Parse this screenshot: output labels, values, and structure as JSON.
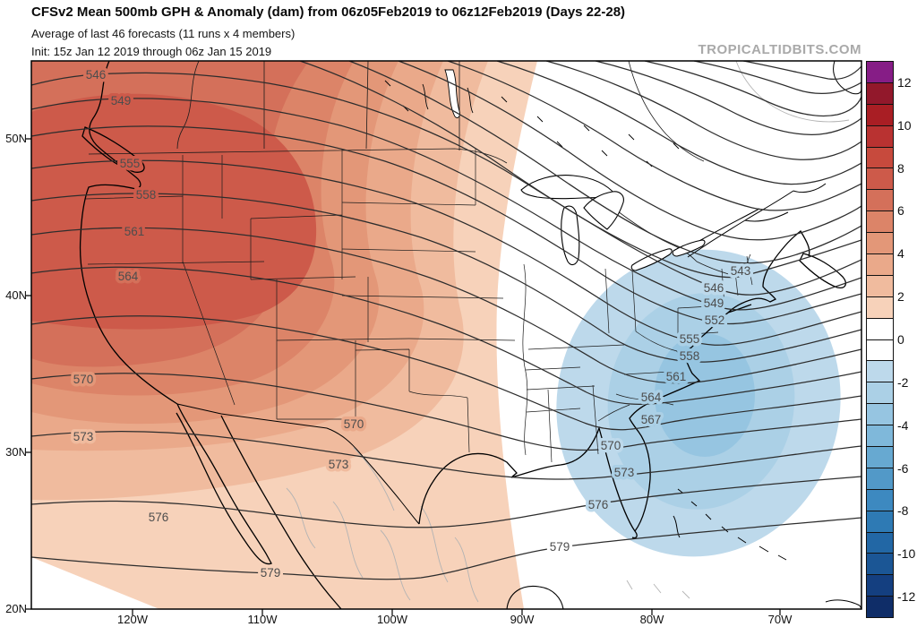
{
  "header": {
    "title": "CFSv2 Mean 500mb GPH & Anomaly (dam) from 06z05Feb2019 to 06z12Feb2019 (Days 22-28)",
    "subtitle": "Average of last 46 forecasts (11 runs x 4 members)",
    "init_line": "Init: 15z Jan 12 2019 through 06z Jan 15 2019",
    "watermark": "TROPICALTIDBITS.COM"
  },
  "axes": {
    "lat": [
      "50N",
      "40N",
      "30N",
      "20N"
    ],
    "lon": [
      "120W",
      "110W",
      "100W",
      "90W",
      "80W",
      "70W"
    ]
  },
  "colorbar": {
    "tick_labels": [
      "12",
      "10",
      "8",
      "6",
      "4",
      "2",
      "0",
      "-2",
      "-4",
      "-6",
      "-8",
      "-10",
      "-12"
    ],
    "segment_colors": [
      "#861d86",
      "#92182b",
      "#a91e24",
      "#b93231",
      "#c74a3d",
      "#cd5a4a",
      "#d4705a",
      "#dc8468",
      "#e39778",
      "#eaa98a",
      "#f0bb9e",
      "#f7d2ba",
      "#ffffff",
      "#ffffff",
      "#bdd9eb",
      "#abd0e6",
      "#96c5e1",
      "#7fb8da",
      "#67a9d1",
      "#5299c8",
      "#3d89c0",
      "#2e7ab4",
      "#2267a5",
      "#1b5695",
      "#143f80",
      "#0f2d68"
    ]
  },
  "contour_labels": [
    "546",
    "549",
    "555",
    "558",
    "561",
    "564",
    "570",
    "573",
    "576",
    "579",
    "570",
    "573",
    "579",
    "576",
    "570",
    "573",
    "543",
    "546",
    "549",
    "552",
    "555",
    "558",
    "561",
    "564",
    "567"
  ],
  "map_data": {
    "type": "contour-map",
    "field": "500mb geopotential height (dam) with height anomaly shading (dam)",
    "contour_interval_dam": 3,
    "labeled_height_contours_dam": [
      543,
      546,
      549,
      552,
      555,
      558,
      561,
      564,
      567,
      570,
      573,
      576,
      579
    ],
    "anomaly_scale_range_dam": [
      -12,
      12
    ],
    "positive_anomaly_center": "western North America / Pacific Northwest ridge (up to about +8 dam)",
    "negative_anomaly_center": "southeastern U.S. / western Atlantic trough (down to about -4 dam)"
  }
}
